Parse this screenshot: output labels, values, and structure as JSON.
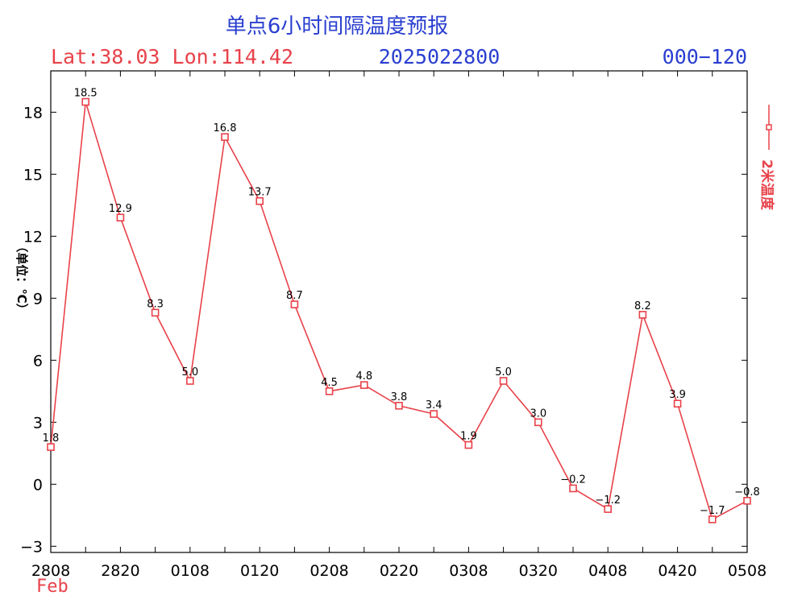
{
  "colors": {
    "title": "#2a3fd0",
    "accent": "#e8424a",
    "series": "#e8424a"
  },
  "header": {
    "title": "单点6小时间隔温度预报",
    "location": "Lat:38.03 Lon:114.42",
    "init_time": "2025022800",
    "forecast_range": "000−120"
  },
  "chart_data": {
    "type": "line",
    "title": "单点6小时间隔温度预报",
    "ylabel": "（单位：℃）",
    "xlabel": "",
    "month_label": "Feb",
    "x": [
      "2808",
      "2814",
      "2820",
      "2902",
      "0108",
      "0114",
      "0120",
      "0202",
      "0208",
      "0214",
      "0220",
      "0302",
      "0308",
      "0314",
      "0320",
      "0402",
      "0408",
      "0414",
      "0420",
      "0502",
      "0508"
    ],
    "x_tick_labels": [
      "2808",
      "2820",
      "0108",
      "0120",
      "0208",
      "0220",
      "0308",
      "0320",
      "0408",
      "0420",
      "0508"
    ],
    "y_ticks": [
      -3,
      0,
      3,
      6,
      9,
      12,
      15,
      18
    ],
    "ylim": [
      -3.3,
      20.0
    ],
    "grid": false,
    "legend_position": "right",
    "series": [
      {
        "name": "2米温度",
        "values": [
          1.8,
          18.5,
          12.9,
          8.3,
          5.0,
          16.8,
          13.7,
          8.7,
          4.5,
          4.8,
          3.8,
          3.4,
          1.9,
          5.0,
          3.0,
          -0.2,
          -1.2,
          8.2,
          3.9,
          -1.7,
          -0.8
        ],
        "labels": [
          "1.8",
          "18.5",
          "12.9",
          "8.3",
          "5.0",
          "16.8",
          "13.7",
          "8.7",
          "4.5",
          "4.8",
          "3.8",
          "3.4",
          "1.9",
          "5.0",
          "3.0",
          "−0.2",
          "−1.2",
          "8.2",
          "3.9",
          "−1.7",
          "−0.8"
        ]
      }
    ]
  }
}
